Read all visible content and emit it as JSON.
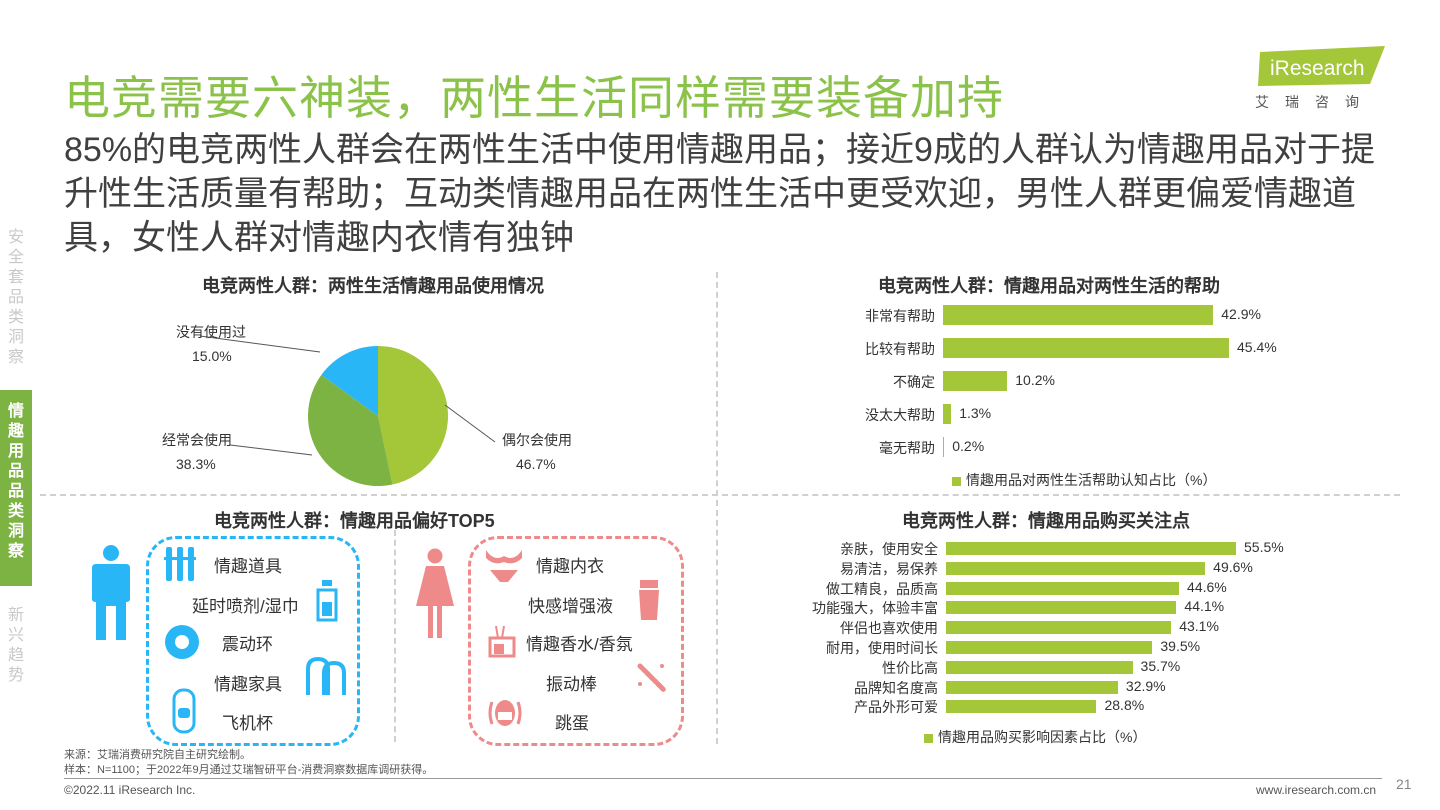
{
  "title": "电竞需要六神装，两性生活同样需要装备加持",
  "subtitle": "85%的电竞两性人群会在两性生活中使用情趣用品；接近9成的人群认为情趣用品对于提升性生活质量有帮助；互动类情趣用品在两性生活中更受欢迎，男性人群更偏爱情趣道具，女性人群对情趣内衣情有独钟",
  "logo": {
    "text": "iResearch",
    "cn": "艾瑞咨询"
  },
  "nav": {
    "item1": [
      "安",
      "全",
      "套",
      "品",
      "类",
      "洞",
      "察"
    ],
    "item2": [
      "情",
      "趣",
      "用",
      "品",
      "品",
      "类",
      "洞",
      "察"
    ],
    "item3": [
      "新",
      "兴",
      "趋",
      "势"
    ]
  },
  "panels": {
    "usage_title": "电竞两性人群：两性生活情趣用品使用情况",
    "help_title": "电竞两性人群：情趣用品对两性生活的帮助",
    "top5_title": "电竞两性人群：情趣用品偏好TOP5",
    "factors_title": "电竞两性人群：情趣用品购买关注点"
  },
  "chart_data": [
    {
      "type": "pie",
      "title": "电竞两性人群：两性生活情趣用品使用情况",
      "labels": [
        "偶尔会使用",
        "经常会使用",
        "没有使用过"
      ],
      "values": [
        46.7,
        38.3,
        15.0
      ],
      "value_labels": [
        "46.7%",
        "38.3%",
        "15.0%"
      ],
      "colors": [
        "#a4c639",
        "#7cb342",
        "#29b6f6"
      ]
    },
    {
      "type": "bar",
      "orientation": "horizontal",
      "title": "电竞两性人群：情趣用品对两性生活的帮助",
      "categories": [
        "非常有帮助",
        "比较有帮助",
        "不确定",
        "没太大帮助",
        "毫无帮助"
      ],
      "values": [
        42.9,
        45.4,
        10.2,
        1.3,
        0.2
      ],
      "value_labels": [
        "42.9%",
        "45.4%",
        "10.2%",
        "1.3%",
        "0.2%"
      ],
      "series_name": "情趣用品对两性生活帮助认知占比（%）",
      "legend": "bottom",
      "color": "#a4c639"
    },
    {
      "type": "bar",
      "orientation": "horizontal",
      "title": "电竞两性人群：情趣用品购买关注点",
      "categories": [
        "亲肤，使用安全",
        "易清洁，易保养",
        "做工精良，品质高",
        "功能强大，体验丰富",
        "伴侣也喜欢使用",
        "耐用，使用时间长",
        "性价比高",
        "品牌知名度高",
        "产品外形可爱"
      ],
      "values": [
        55.5,
        49.6,
        44.6,
        44.1,
        43.1,
        39.5,
        35.7,
        32.9,
        28.8
      ],
      "value_labels": [
        "55.5%",
        "49.6%",
        "44.6%",
        "44.1%",
        "43.1%",
        "39.5%",
        "35.7%",
        "32.9%",
        "28.8%"
      ],
      "series_name": "情趣用品购买影响因素占比（%）",
      "legend": "bottom",
      "color": "#a4c639"
    }
  ],
  "top5": {
    "male": [
      "情趣道具",
      "延时喷剂/湿巾",
      "震动环",
      "情趣家具",
      "飞机杯"
    ],
    "female": [
      "情趣内衣",
      "快感增强液",
      "情趣香水/香氛",
      "振动棒",
      "跳蛋"
    ],
    "male_color": "#29b6f6",
    "female_color": "#ef8a8a"
  },
  "footer": {
    "source": "来源：艾瑞消费研究院自主研究绘制。",
    "sample": "样本：N=1100；于2022年9月通过艾瑞智研平台-消费洞察数据库调研获得。",
    "copyright": "©2022.11 iResearch Inc.",
    "site": "www.iresearch.com.cn",
    "page": "21"
  }
}
